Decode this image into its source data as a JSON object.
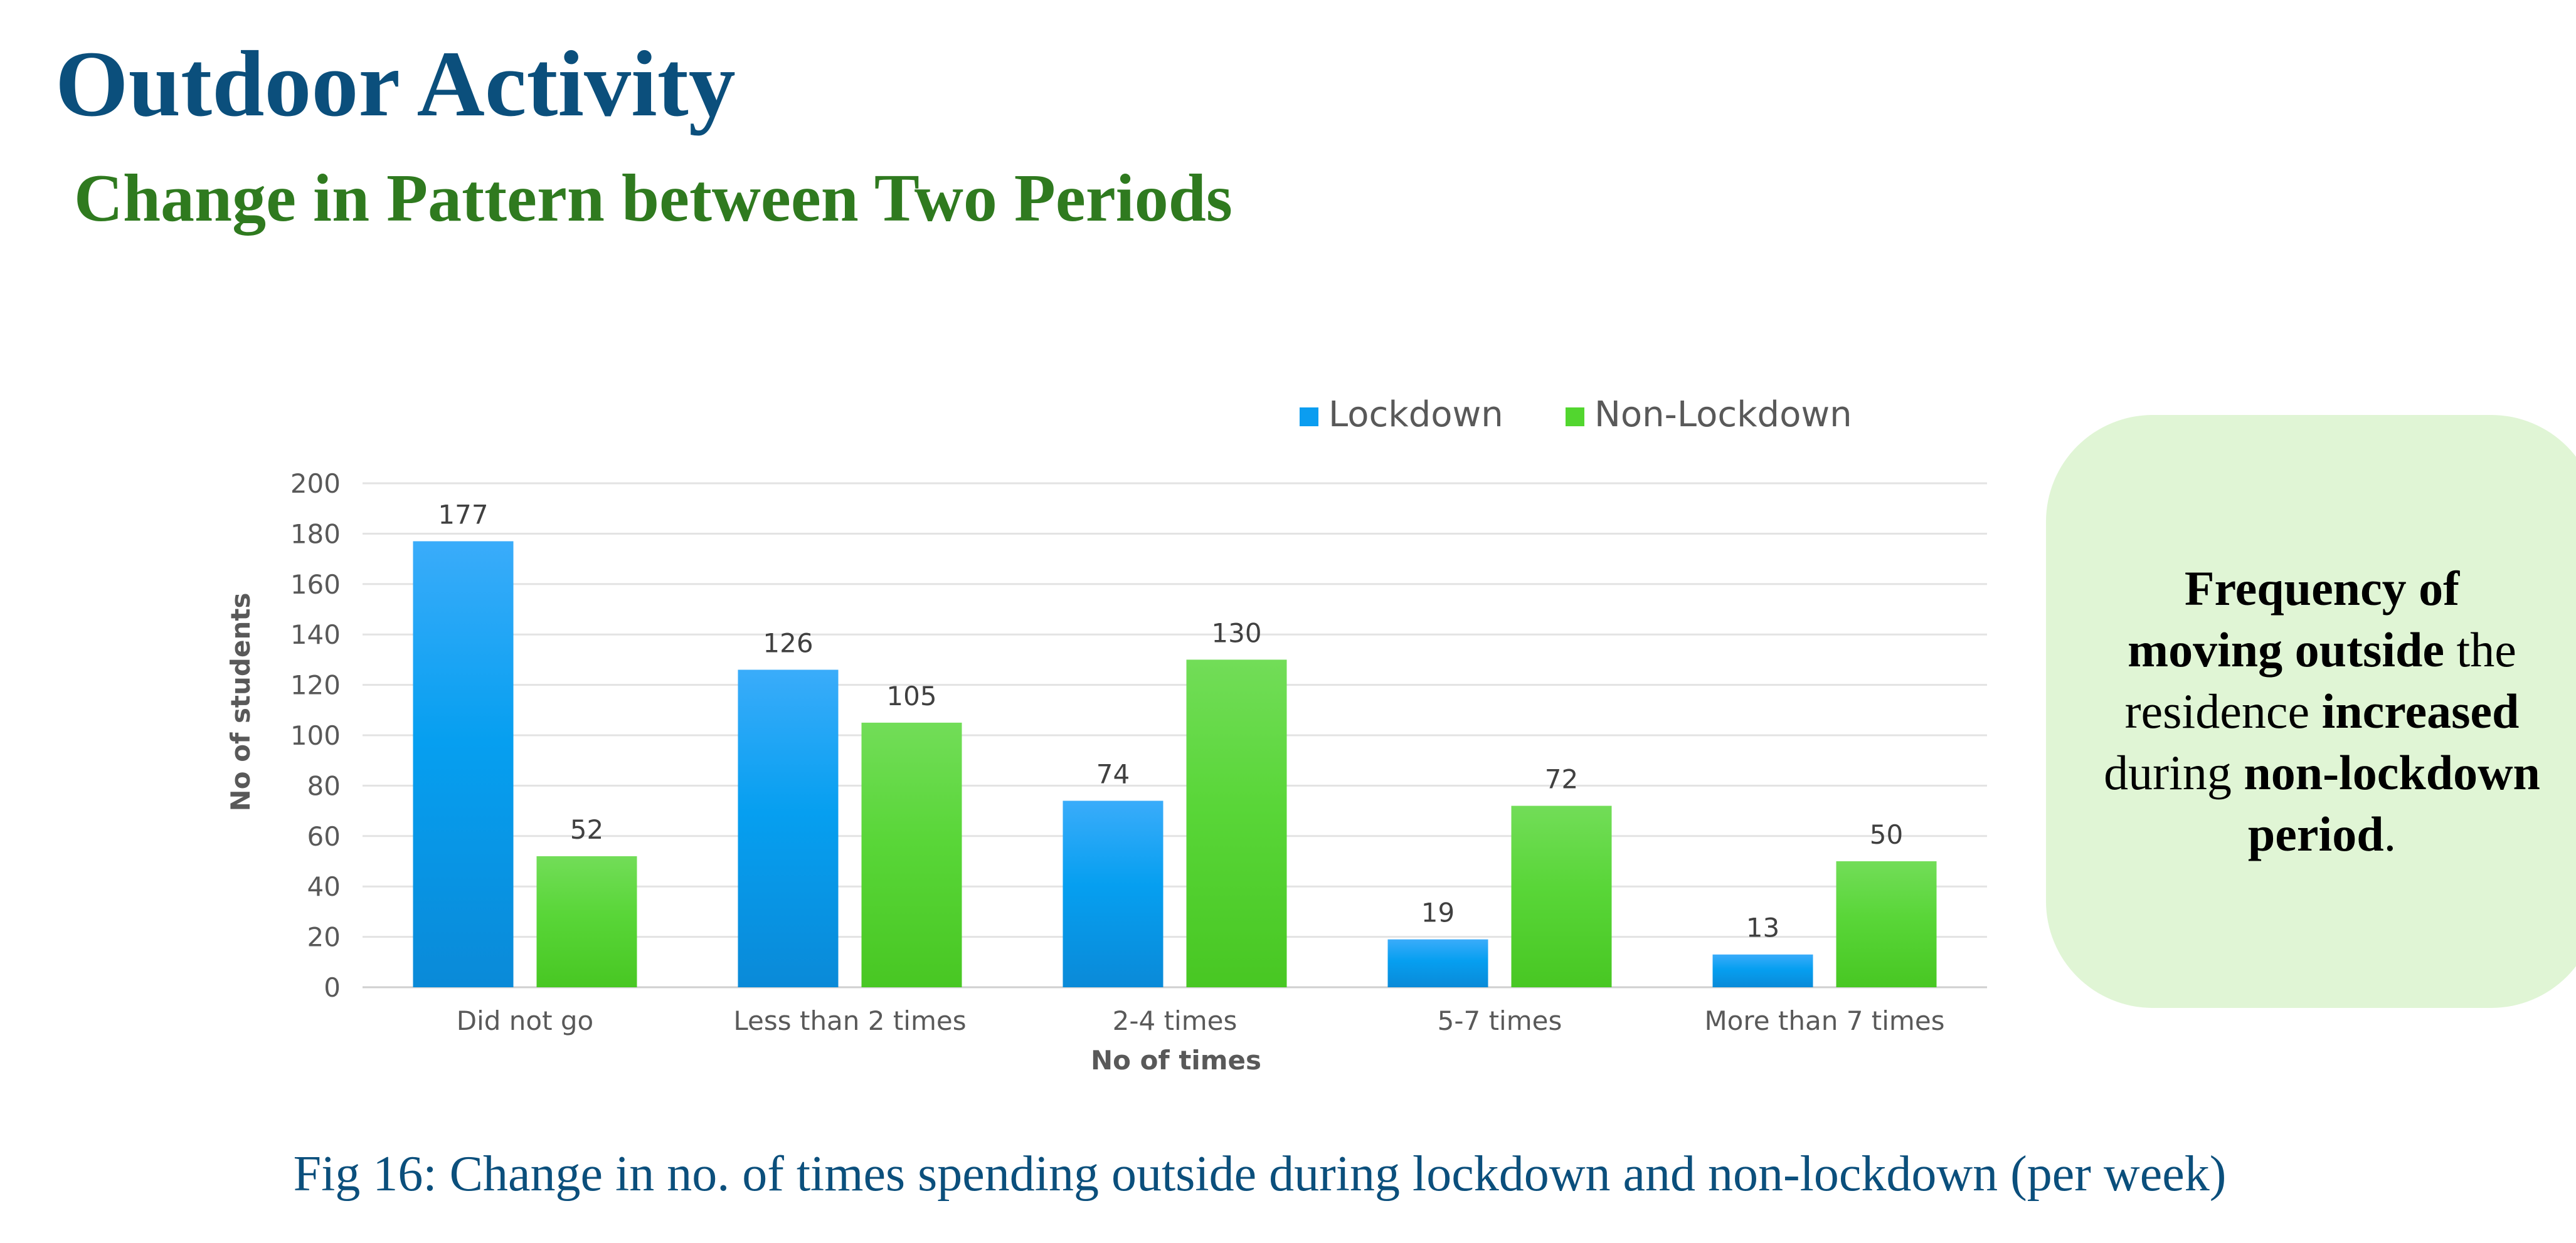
{
  "page": {
    "title": "Outdoor Activity",
    "subtitle": "Change in Pattern between Two Periods",
    "caption": "Fig 16: Change in no. of times spending outside during lockdown and non-lockdown (per week)"
  },
  "callout": {
    "p1": "Frequency of moving outside",
    "p2": " the residence ",
    "p3": "increased",
    "p4": " during ",
    "p5": "non-lockdown period",
    "p6": "."
  },
  "chart_data": {
    "type": "bar",
    "categories": [
      "Did not go",
      "Less than 2 times",
      "2-4 times",
      "5-7 times",
      "More than 7 times"
    ],
    "series": [
      {
        "name": "Lockdown",
        "values": [
          177,
          126,
          74,
          19,
          13
        ],
        "color": "#0b9df0"
      },
      {
        "name": "Non-Lockdown",
        "values": [
          52,
          105,
          130,
          72,
          50
        ],
        "color": "#52d62f"
      }
    ],
    "xlabel": "No of times",
    "ylabel": "No of students",
    "ylim": [
      0,
      200
    ],
    "yticks": [
      0,
      20,
      40,
      60,
      80,
      100,
      120,
      140,
      160,
      180,
      200
    ],
    "grid": true,
    "legend": "top-right",
    "data_labels": true
  }
}
